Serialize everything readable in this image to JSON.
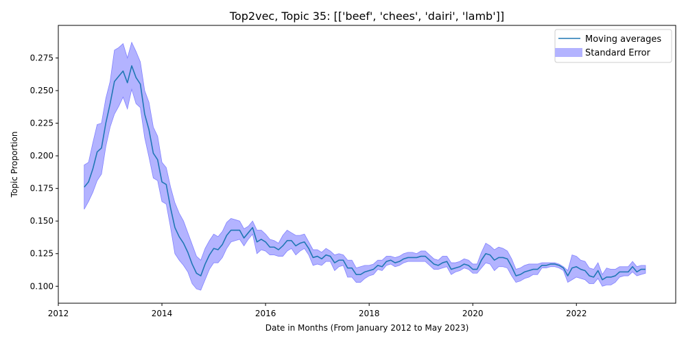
{
  "chart_data": {
    "type": "line",
    "title": "Top2vec, Topic 35: [['beef', 'chees', 'dairi', 'lamb']]",
    "xlabel": "Date in Months (From January 2012 to May 2023)",
    "ylabel": "Topic Proportion",
    "xlim": [
      "2012-01",
      "2023-12"
    ],
    "ylim": [
      0.087,
      0.3
    ],
    "xticks": [
      2012,
      2014,
      2016,
      2018,
      2020,
      2022
    ],
    "xtick_labels": [
      "2012",
      "2014",
      "2016",
      "2018",
      "2020",
      "2022"
    ],
    "yticks": [
      0.1,
      0.125,
      0.15,
      0.175,
      0.2,
      0.225,
      0.25,
      0.275
    ],
    "ytick_labels": [
      "0.100",
      "0.125",
      "0.150",
      "0.175",
      "0.200",
      "0.225",
      "0.250",
      "0.275"
    ],
    "legend_position": "top-right",
    "grid": false,
    "colors": {
      "line": "#1f77b4",
      "band": "#b3b3ff",
      "band_edge": "#8080ff"
    },
    "series": [
      {
        "name": "Moving averages",
        "x": [
          "2012-07",
          "2012-08",
          "2012-09",
          "2012-10",
          "2012-11",
          "2012-12",
          "2013-01",
          "2013-02",
          "2013-03",
          "2013-04",
          "2013-05",
          "2013-06",
          "2013-07",
          "2013-08",
          "2013-09",
          "2013-10",
          "2013-11",
          "2013-12",
          "2014-01",
          "2014-02",
          "2014-03",
          "2014-04",
          "2014-05",
          "2014-06",
          "2014-07",
          "2014-08",
          "2014-09",
          "2014-10",
          "2014-11",
          "2014-12",
          "2015-01",
          "2015-02",
          "2015-03",
          "2015-04",
          "2015-05",
          "2015-06",
          "2015-07",
          "2015-08",
          "2015-09",
          "2015-10",
          "2015-11",
          "2015-12",
          "2016-01",
          "2016-02",
          "2016-03",
          "2016-04",
          "2016-05",
          "2016-06",
          "2016-07",
          "2016-08",
          "2016-09",
          "2016-10",
          "2016-11",
          "2016-12",
          "2017-01",
          "2017-02",
          "2017-03",
          "2017-04",
          "2017-05",
          "2017-06",
          "2017-07",
          "2017-08",
          "2017-09",
          "2017-10",
          "2017-11",
          "2017-12",
          "2018-01",
          "2018-02",
          "2018-03",
          "2018-04",
          "2018-05",
          "2018-06",
          "2018-07",
          "2018-08",
          "2018-09",
          "2018-10",
          "2018-11",
          "2018-12",
          "2019-01",
          "2019-02",
          "2019-03",
          "2019-04",
          "2019-05",
          "2019-06",
          "2019-07",
          "2019-08",
          "2019-09",
          "2019-10",
          "2019-11",
          "2019-12",
          "2020-01",
          "2020-02",
          "2020-03",
          "2020-04",
          "2020-05",
          "2020-06",
          "2020-07",
          "2020-08",
          "2020-09",
          "2020-10",
          "2020-11",
          "2020-12",
          "2021-01",
          "2021-02",
          "2021-03",
          "2021-04",
          "2021-05",
          "2021-06",
          "2021-07",
          "2021-08",
          "2021-09",
          "2021-10",
          "2021-11",
          "2021-12",
          "2022-01",
          "2022-02",
          "2022-03",
          "2022-04",
          "2022-05",
          "2022-06",
          "2022-07",
          "2022-08",
          "2022-09",
          "2022-10",
          "2022-11",
          "2022-12",
          "2023-01",
          "2023-02",
          "2023-03",
          "2023-04",
          "2023-05"
        ],
        "values": [
          0.176,
          0.18,
          0.19,
          0.203,
          0.206,
          0.225,
          0.24,
          0.257,
          0.261,
          0.265,
          0.256,
          0.269,
          0.26,
          0.255,
          0.232,
          0.22,
          0.202,
          0.197,
          0.18,
          0.178,
          0.16,
          0.145,
          0.138,
          0.133,
          0.126,
          0.117,
          0.11,
          0.108,
          0.117,
          0.124,
          0.129,
          0.128,
          0.132,
          0.139,
          0.143,
          0.143,
          0.143,
          0.137,
          0.141,
          0.145,
          0.134,
          0.136,
          0.134,
          0.13,
          0.13,
          0.128,
          0.131,
          0.135,
          0.135,
          0.131,
          0.133,
          0.134,
          0.129,
          0.122,
          0.123,
          0.121,
          0.124,
          0.123,
          0.118,
          0.12,
          0.12,
          0.114,
          0.114,
          0.109,
          0.109,
          0.111,
          0.112,
          0.113,
          0.116,
          0.115,
          0.119,
          0.12,
          0.118,
          0.119,
          0.121,
          0.122,
          0.122,
          0.122,
          0.123,
          0.123,
          0.12,
          0.117,
          0.116,
          0.118,
          0.119,
          0.113,
          0.114,
          0.115,
          0.117,
          0.116,
          0.113,
          0.113,
          0.12,
          0.125,
          0.124,
          0.12,
          0.122,
          0.122,
          0.121,
          0.115,
          0.108,
          0.109,
          0.111,
          0.112,
          0.113,
          0.113,
          0.116,
          0.116,
          0.117,
          0.117,
          0.116,
          0.114,
          0.108,
          0.114,
          0.115,
          0.113,
          0.112,
          0.108,
          0.107,
          0.112,
          0.105,
          0.107,
          0.107,
          0.108,
          0.111,
          0.111,
          0.111,
          0.115,
          0.111,
          0.113,
          0.113
        ]
      },
      {
        "name": "Standard Error",
        "upper": [
          0.193,
          0.195,
          0.21,
          0.224,
          0.225,
          0.244,
          0.257,
          0.281,
          0.283,
          0.286,
          0.275,
          0.287,
          0.28,
          0.272,
          0.25,
          0.241,
          0.222,
          0.215,
          0.195,
          0.191,
          0.176,
          0.164,
          0.156,
          0.15,
          0.141,
          0.132,
          0.123,
          0.12,
          0.129,
          0.135,
          0.14,
          0.138,
          0.142,
          0.149,
          0.152,
          0.151,
          0.15,
          0.144,
          0.146,
          0.15,
          0.143,
          0.143,
          0.14,
          0.136,
          0.135,
          0.133,
          0.139,
          0.143,
          0.141,
          0.139,
          0.139,
          0.14,
          0.134,
          0.128,
          0.128,
          0.126,
          0.129,
          0.127,
          0.124,
          0.125,
          0.124,
          0.12,
          0.12,
          0.114,
          0.115,
          0.116,
          0.116,
          0.117,
          0.12,
          0.12,
          0.123,
          0.123,
          0.122,
          0.123,
          0.125,
          0.126,
          0.126,
          0.125,
          0.127,
          0.127,
          0.124,
          0.121,
          0.12,
          0.123,
          0.123,
          0.118,
          0.118,
          0.119,
          0.121,
          0.12,
          0.117,
          0.117,
          0.126,
          0.133,
          0.131,
          0.128,
          0.13,
          0.129,
          0.127,
          0.121,
          0.113,
          0.114,
          0.116,
          0.117,
          0.117,
          0.117,
          0.118,
          0.118,
          0.118,
          0.118,
          0.117,
          0.115,
          0.112,
          0.124,
          0.123,
          0.12,
          0.119,
          0.114,
          0.113,
          0.118,
          0.109,
          0.114,
          0.113,
          0.113,
          0.115,
          0.115,
          0.115,
          0.119,
          0.115,
          0.116,
          0.116
        ],
        "lower": [
          0.159,
          0.165,
          0.172,
          0.181,
          0.186,
          0.207,
          0.222,
          0.232,
          0.238,
          0.245,
          0.236,
          0.251,
          0.24,
          0.237,
          0.214,
          0.199,
          0.183,
          0.181,
          0.165,
          0.163,
          0.145,
          0.125,
          0.12,
          0.116,
          0.111,
          0.102,
          0.098,
          0.097,
          0.105,
          0.113,
          0.118,
          0.118,
          0.122,
          0.129,
          0.134,
          0.135,
          0.136,
          0.131,
          0.136,
          0.14,
          0.125,
          0.128,
          0.127,
          0.124,
          0.124,
          0.123,
          0.123,
          0.127,
          0.129,
          0.124,
          0.127,
          0.129,
          0.124,
          0.116,
          0.117,
          0.116,
          0.119,
          0.119,
          0.112,
          0.115,
          0.116,
          0.107,
          0.107,
          0.103,
          0.103,
          0.106,
          0.108,
          0.109,
          0.113,
          0.112,
          0.116,
          0.117,
          0.115,
          0.116,
          0.118,
          0.119,
          0.119,
          0.119,
          0.119,
          0.119,
          0.116,
          0.113,
          0.113,
          0.114,
          0.115,
          0.109,
          0.111,
          0.112,
          0.114,
          0.113,
          0.11,
          0.11,
          0.114,
          0.118,
          0.117,
          0.112,
          0.115,
          0.115,
          0.114,
          0.108,
          0.103,
          0.104,
          0.106,
          0.107,
          0.109,
          0.109,
          0.114,
          0.114,
          0.115,
          0.115,
          0.114,
          0.112,
          0.103,
          0.105,
          0.107,
          0.106,
          0.105,
          0.102,
          0.102,
          0.106,
          0.1,
          0.101,
          0.101,
          0.103,
          0.107,
          0.108,
          0.108,
          0.111,
          0.108,
          0.109,
          0.11
        ]
      }
    ]
  }
}
